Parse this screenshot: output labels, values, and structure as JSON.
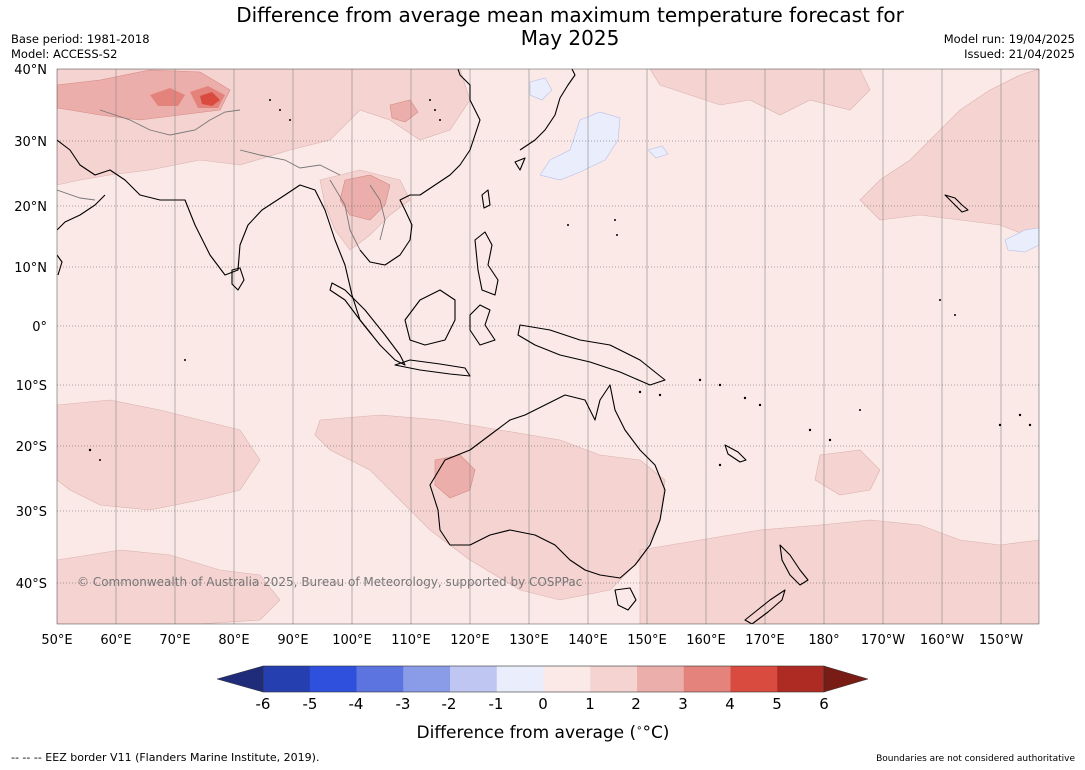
{
  "header": {
    "title_line1": "Difference from average mean maximum temperature forecast for",
    "title_line2": "May 2025",
    "base_period": "Base period: 1981-2018",
    "model": "Model: ACCESS-S2",
    "model_run": "Model run: 19/04/2025",
    "issued": "Issued: 21/04/2025"
  },
  "map": {
    "lat_labels": [
      "40°N",
      "30°N",
      "20°N",
      "10°N",
      "0°",
      "10°S",
      "20°S",
      "30°S",
      "40°S"
    ],
    "lon_labels": [
      "50°E",
      "60°E",
      "70°E",
      "80°E",
      "90°E",
      "100°E",
      "110°E",
      "120°E",
      "130°E",
      "140°E",
      "150°E",
      "160°E",
      "170°E",
      "180°",
      "170°W",
      "160°W",
      "150°W"
    ],
    "copyright": "© Commonwealth of Australia 2025, Bureau of Meteorology, supported by COSPPac"
  },
  "colorbar": {
    "tick_labels": [
      "-6",
      "-5",
      "-4",
      "-3",
      "-2",
      "-1",
      "0",
      "1",
      "2",
      "3",
      "4",
      "5",
      "6"
    ],
    "colors": [
      "#1f2c7a",
      "#253fb0",
      "#2f50dc",
      "#5c74e0",
      "#8a9be8",
      "#bfc6f2",
      "#eaedfb",
      "#fbe9e7",
      "#f4d3d0",
      "#ecaeaa",
      "#e4837b",
      "#d94a3f",
      "#ad2b22",
      "#7a1c16"
    ],
    "title": "Difference from average (",
    "unit": "°C)"
  },
  "footer": {
    "eez": "--  --  -- EEZ border V11 (Flanders Marine Institute, 2019).",
    "note": "Boundaries are not considered authoritative"
  }
}
